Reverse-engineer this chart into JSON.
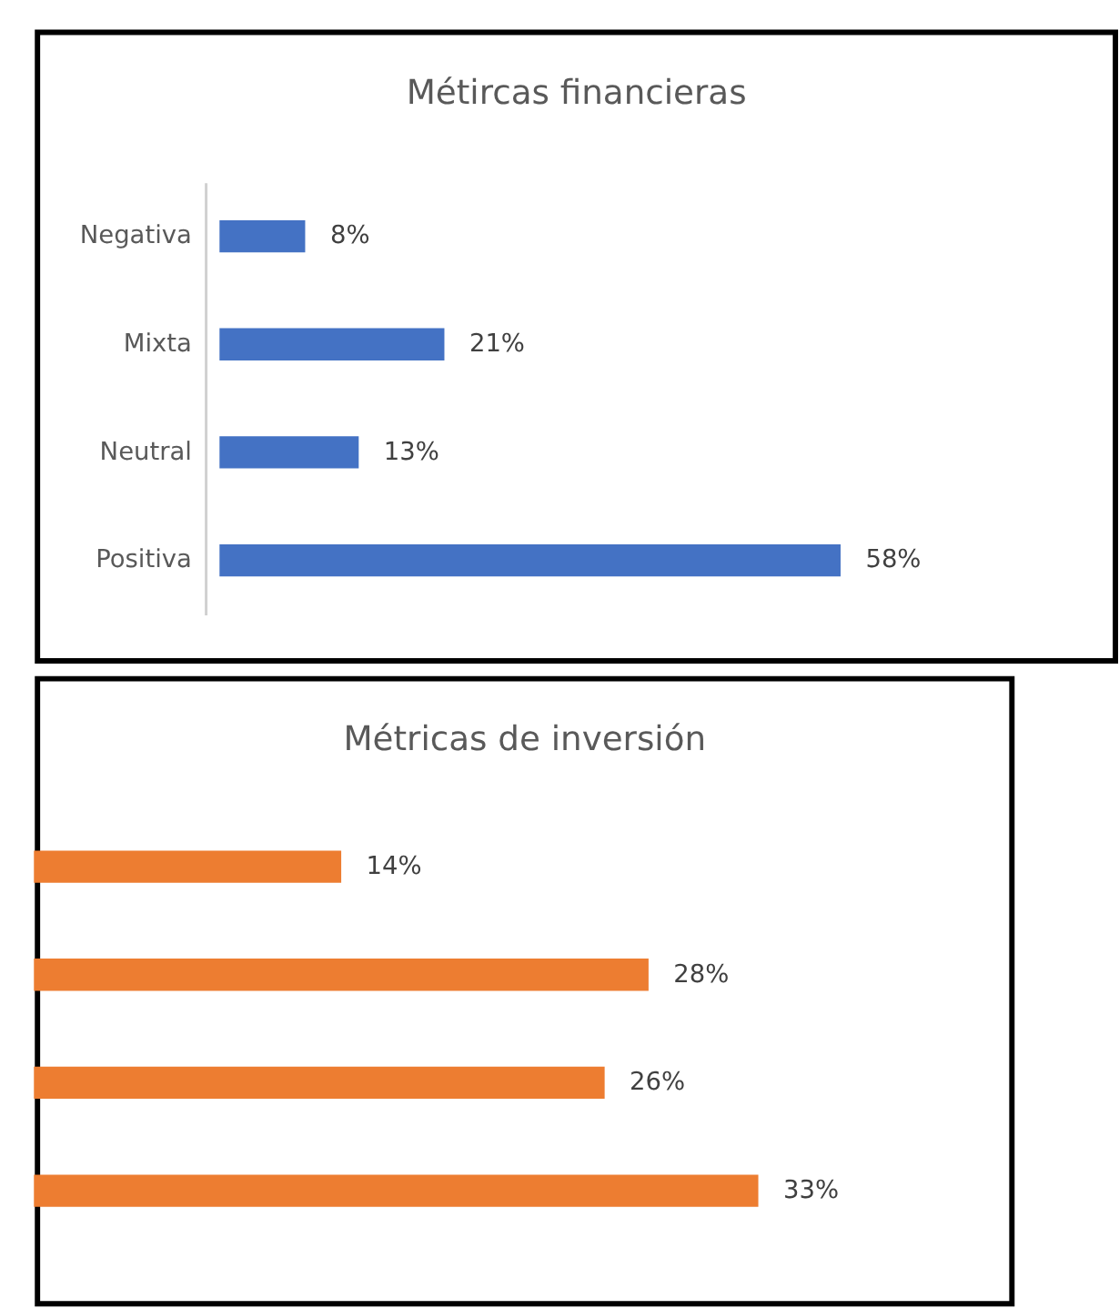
{
  "chart_data": [
    {
      "type": "bar",
      "orientation": "horizontal",
      "title": "Métircas financieras",
      "categories": [
        "Negativa",
        "Mixta",
        "Neutral",
        "Positiva"
      ],
      "values": [
        8,
        21,
        13,
        58
      ],
      "value_labels": [
        "8%",
        "21%",
        "13%",
        "58%"
      ],
      "color": "#4472c4",
      "grid": false
    },
    {
      "type": "bar",
      "orientation": "horizontal",
      "title": "Métricas de inversión",
      "categories": [
        null,
        null,
        null,
        null
      ],
      "values": [
        14,
        28,
        26,
        33
      ],
      "value_labels": [
        "14%",
        "28%",
        "26%",
        "33%"
      ],
      "color": "#ed7d31",
      "grid": false
    }
  ]
}
